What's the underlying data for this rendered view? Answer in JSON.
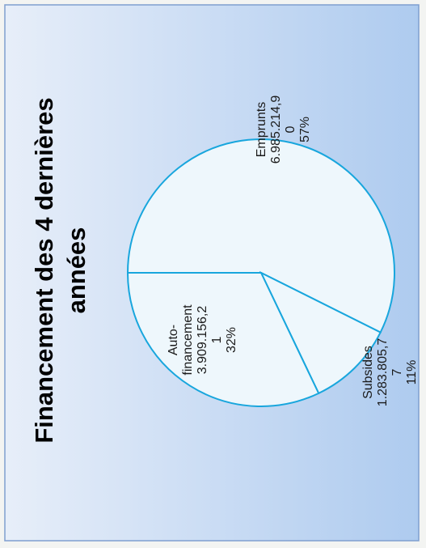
{
  "chart_data": {
    "type": "pie",
    "title_lines": [
      "Financement des 4 dernières",
      "années"
    ],
    "slices": [
      {
        "label_lines": [
          "Emprunts",
          "6.985.214,9",
          "0",
          "57%"
        ],
        "value": 6985214.9,
        "percent": 57
      },
      {
        "label_lines": [
          "Subsides",
          "1.283.805,7",
          "7",
          "11%"
        ],
        "value": 1283805.77,
        "percent": 11
      },
      {
        "label_lines": [
          "Auto-",
          "financement",
          "3.909.156,2",
          "1",
          "32%"
        ],
        "value": 3909156.21,
        "percent": 32
      }
    ]
  },
  "colors": {
    "background_top": "#e7eef9",
    "background_bottom": "#aecbef",
    "border": "#7f9fd0",
    "pie_fill": "#eef7fc",
    "pie_stroke": "#18a6dd",
    "text": "#1a1a1a"
  }
}
